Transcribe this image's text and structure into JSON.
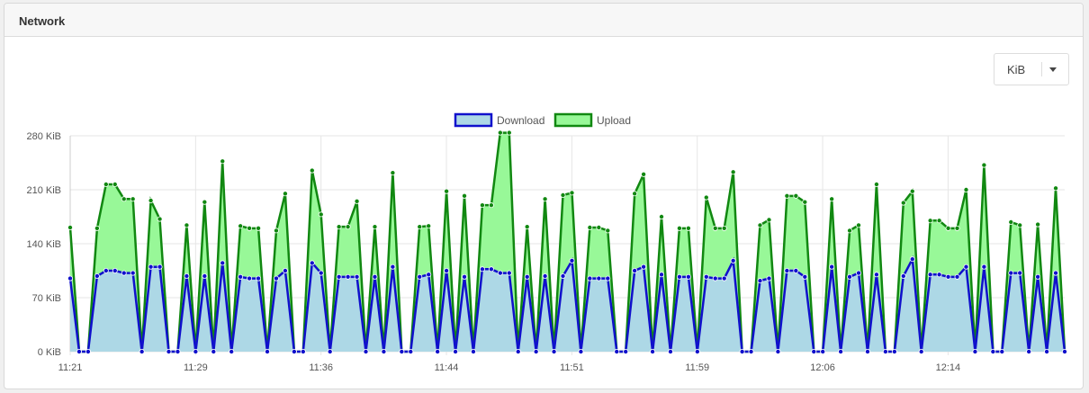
{
  "panel": {
    "title": "Network",
    "unit_select": {
      "selected": "KiB"
    }
  },
  "colors": {
    "download_line": "#1010cc",
    "download_fill": "#add8e6",
    "upload_line": "#118811",
    "upload_fill": "#98f898",
    "grid": "#e6e6e6"
  },
  "chart_data": {
    "type": "area",
    "stacked": true,
    "xlabel": "",
    "ylabel": "",
    "ylim": [
      0,
      280
    ],
    "y_ticks": [
      {
        "value": 0,
        "label": "0 KiB"
      },
      {
        "value": 70,
        "label": "70 KiB"
      },
      {
        "value": 140,
        "label": "140 KiB"
      },
      {
        "value": 210,
        "label": "210 KiB"
      },
      {
        "value": 280,
        "label": "280 KiB"
      }
    ],
    "x_ticks": [
      "11:21",
      "11:29",
      "11:36",
      "11:44",
      "11:51",
      "11:59",
      "12:06",
      "12:14"
    ],
    "legend": {
      "placement": "top-center"
    },
    "series": [
      {
        "name": "Download",
        "values": [
          95,
          0,
          0,
          98,
          105,
          105,
          102,
          102,
          0,
          110,
          110,
          0,
          0,
          98,
          0,
          98,
          0,
          115,
          0,
          97,
          95,
          95,
          0,
          95,
          105,
          0,
          0,
          115,
          102,
          0,
          97,
          97,
          97,
          0,
          97,
          0,
          110,
          0,
          0,
          97,
          100,
          0,
          105,
          0,
          97,
          0,
          107,
          107,
          102,
          102,
          0,
          97,
          0,
          98,
          0,
          98,
          118,
          0,
          95,
          95,
          95,
          0,
          0,
          105,
          110,
          0,
          100,
          0,
          97,
          97,
          0,
          97,
          95,
          95,
          118,
          0,
          0,
          92,
          95,
          0,
          105,
          105,
          97,
          0,
          0,
          110,
          0,
          97,
          102,
          0,
          100,
          0,
          0,
          98,
          120,
          0,
          100,
          100,
          97,
          97,
          110,
          0,
          110,
          0,
          0,
          102,
          102,
          0,
          97,
          0,
          102,
          0
        ]
      },
      {
        "name": "Upload",
        "values": [
          66,
          0,
          0,
          62,
          112,
          112,
          96,
          96,
          0,
          86,
          62,
          0,
          0,
          66,
          0,
          96,
          0,
          132,
          0,
          66,
          65,
          65,
          0,
          62,
          100,
          0,
          0,
          120,
          76,
          0,
          65,
          65,
          98,
          0,
          65,
          0,
          122,
          0,
          0,
          65,
          63,
          0,
          103,
          0,
          105,
          0,
          83,
          83,
          182,
          182,
          0,
          65,
          0,
          100,
          0,
          105,
          88,
          0,
          66,
          66,
          62,
          0,
          0,
          100,
          120,
          0,
          75,
          0,
          63,
          63,
          0,
          103,
          65,
          65,
          115,
          0,
          0,
          72,
          76,
          0,
          97,
          97,
          97,
          0,
          0,
          88,
          0,
          60,
          62,
          0,
          117,
          0,
          0,
          95,
          88,
          0,
          70,
          70,
          63,
          63,
          100,
          0,
          132,
          0,
          0,
          66,
          62,
          0,
          68,
          0,
          110,
          0
        ]
      }
    ]
  }
}
